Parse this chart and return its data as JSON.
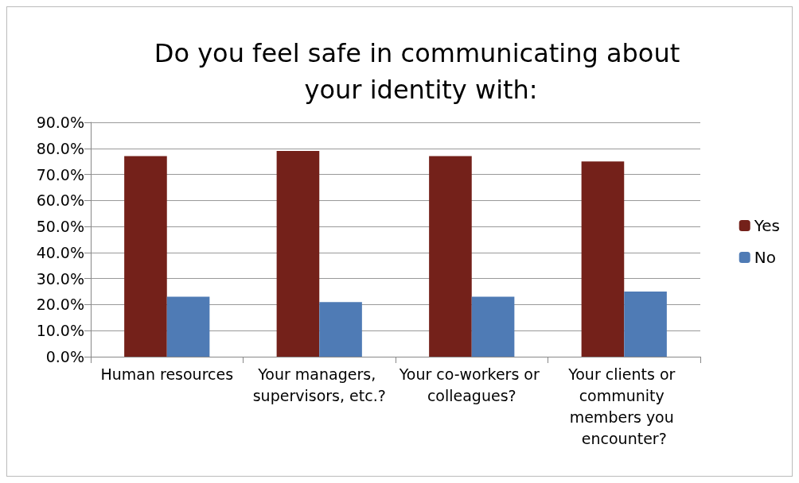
{
  "chart_data": {
    "type": "bar",
    "title": "Do you feel safe in communicating about your identity with:",
    "categories": [
      "Human resources",
      "Your managers, supervisors, etc.?",
      "Your co-workers or colleagues?",
      "Your clients or community members you encounter?"
    ],
    "series": [
      {
        "name": "Yes",
        "color": "#74211a",
        "values": [
          77,
          79,
          77,
          75
        ]
      },
      {
        "name": "No",
        "color": "#4f7bb5",
        "values": [
          23,
          21,
          23,
          25
        ]
      }
    ],
    "ylim": [
      0,
      90
    ],
    "yticks": [
      {
        "value": 0,
        "label": "0.0%"
      },
      {
        "value": 10,
        "label": "10.0%"
      },
      {
        "value": 20,
        "label": "20.0%"
      },
      {
        "value": 30,
        "label": "30.0%"
      },
      {
        "value": 40,
        "label": "40.0%"
      },
      {
        "value": 50,
        "label": "50.0%"
      },
      {
        "value": 60,
        "label": "60.0%"
      },
      {
        "value": 70,
        "label": "70.0%"
      },
      {
        "value": 80,
        "label": "80.0%"
      },
      {
        "value": 90,
        "label": "90.0%"
      }
    ],
    "grid": "y",
    "legend": "right"
  }
}
